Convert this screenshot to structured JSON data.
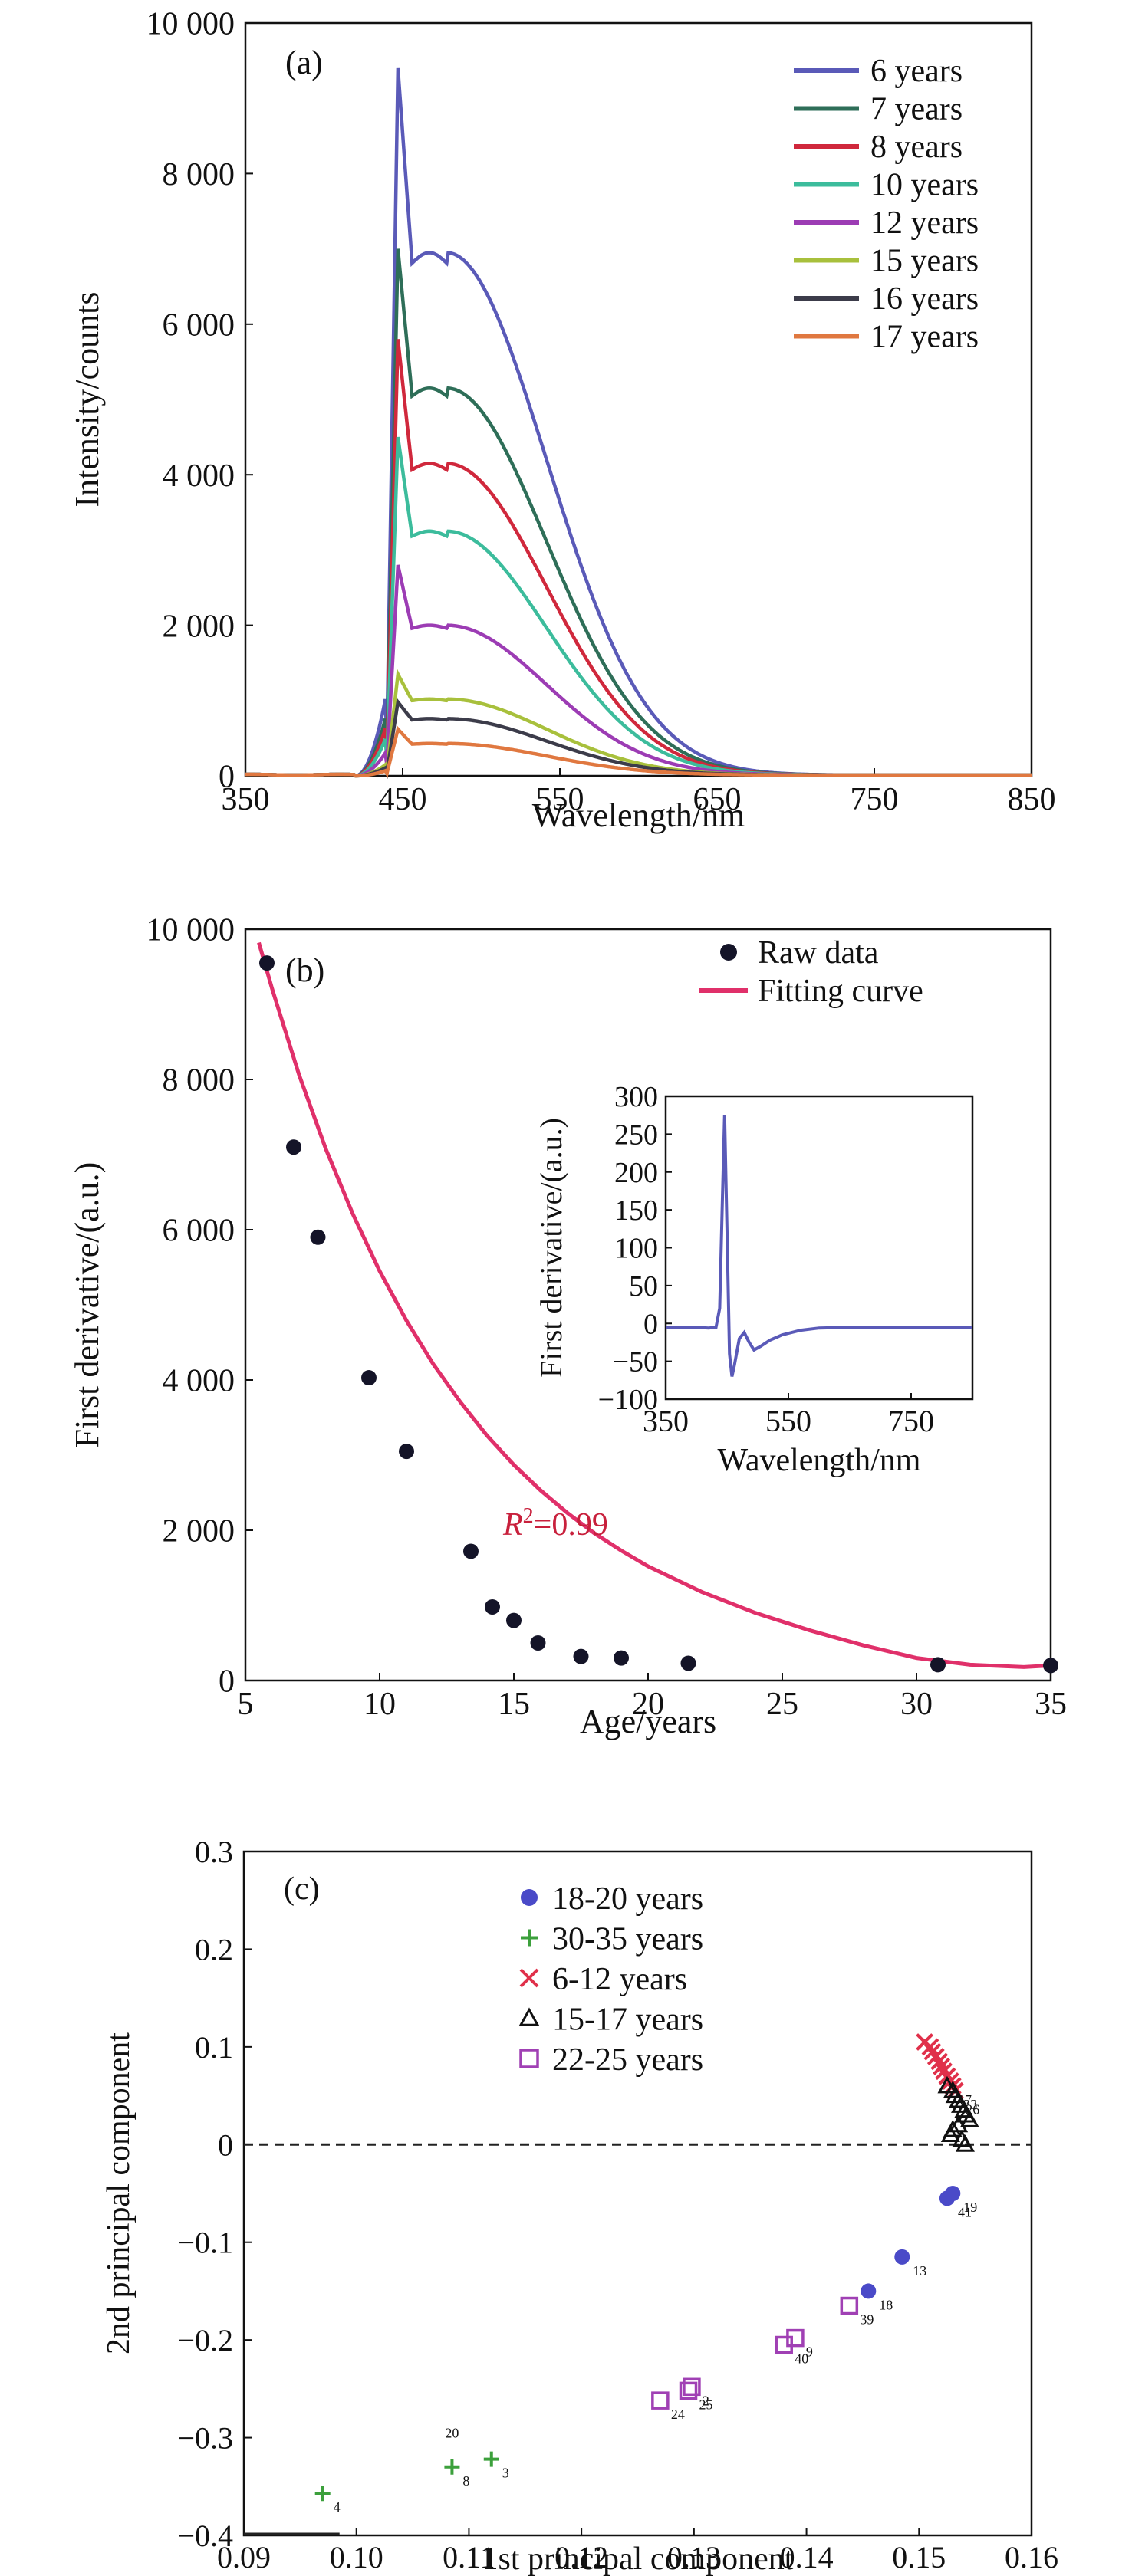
{
  "chart_data": [
    {
      "panel": "(a)",
      "type": "line",
      "xlabel": "Wavelength/nm",
      "ylabel": "Intensity/counts",
      "xlim": [
        350,
        850
      ],
      "ylim": [
        0,
        10000
      ],
      "xticks": [
        350,
        450,
        550,
        650,
        750,
        850
      ],
      "xtick_labels": [
        "350",
        "450",
        "550",
        "650",
        "750",
        "850"
      ],
      "yticks": [
        0,
        2000,
        4000,
        6000,
        8000,
        10000
      ],
      "ytick_labels": [
        "0",
        "2 000",
        "4 000",
        "6 000",
        "8 000",
        "10 000"
      ],
      "legend_position": "top-right",
      "peak_wavelength": 447,
      "series": [
        {
          "name": "6 years",
          "color": "#5a5ab8",
          "peak": 9400,
          "shoulder": 6950
        },
        {
          "name": "7 years",
          "color": "#2e6e58",
          "peak": 7000,
          "shoulder": 5150
        },
        {
          "name": "8 years",
          "color": "#d0283c",
          "peak": 5800,
          "shoulder": 4150
        },
        {
          "name": "10 years",
          "color": "#3cbc9c",
          "peak": 4500,
          "shoulder": 3250
        },
        {
          "name": "12 years",
          "color": "#9c3cb4",
          "peak": 2800,
          "shoulder": 2000
        },
        {
          "name": "15 years",
          "color": "#a8c03c",
          "peak": 1350,
          "shoulder": 1020
        },
        {
          "name": "16 years",
          "color": "#3c3c4a",
          "peak": 980,
          "shoulder": 760
        },
        {
          "name": "17 years",
          "color": "#e07840",
          "peak": 620,
          "shoulder": 430
        }
      ]
    },
    {
      "panel": "(b)",
      "type": "scatter",
      "xlabel": "Age/years",
      "ylabel": "First derivative/(a.u.)",
      "xlim": [
        5,
        35
      ],
      "ylim": [
        0,
        10000
      ],
      "xticks": [
        5,
        10,
        15,
        20,
        25,
        30,
        35
      ],
      "xtick_labels": [
        "5",
        "10",
        "15",
        "20",
        "25",
        "30",
        "35"
      ],
      "yticks": [
        0,
        2000,
        4000,
        6000,
        8000,
        10000
      ],
      "ytick_labels": [
        "0",
        "2 000",
        "4 000",
        "6 000",
        "8 000",
        "10 000"
      ],
      "legend_position": "top-right",
      "annotation": "R²=0.99",
      "series": [
        {
          "name": "Raw data",
          "color": "#141428",
          "x": [
            5.8,
            6.8,
            7.7,
            9.6,
            11.0,
            13.4,
            14.2,
            15.0,
            15.9,
            17.5,
            19.0,
            21.5,
            30.8,
            35.0
          ],
          "y": [
            9550,
            7100,
            5900,
            4030,
            3050,
            1720,
            980,
            800,
            500,
            320,
            300,
            230,
            210,
            200
          ]
        },
        {
          "name": "Fitting curve",
          "color": "#e0306a",
          "x": [
            5.5,
            6,
            7,
            8,
            9,
            10,
            11,
            12,
            13,
            14,
            15,
            16,
            17,
            18,
            19,
            20,
            22,
            24,
            26,
            28,
            30,
            32,
            34,
            35
          ],
          "y": [
            9820,
            9200,
            8060,
            7070,
            6210,
            5450,
            4790,
            4210,
            3710,
            3260,
            2870,
            2530,
            2230,
            1960,
            1730,
            1520,
            1180,
            900,
            670,
            470,
            300,
            210,
            180,
            200
          ]
        }
      ],
      "inset": {
        "type": "line",
        "xlabel": "Wavelength/nm",
        "ylabel": "First derivative/(a.u.)",
        "xlim": [
          350,
          850
        ],
        "ylim": [
          -100,
          300
        ],
        "xticks": [
          350,
          550,
          750
        ],
        "xtick_labels": [
          "350",
          "550",
          "750"
        ],
        "yticks": [
          -100,
          -50,
          0,
          50,
          100,
          150,
          200,
          250,
          300
        ],
        "ytick_labels": [
          "−100",
          "−50",
          "0",
          "50",
          "100",
          "150",
          "200",
          "250",
          "300"
        ],
        "color": "#5a5ab8",
        "x": [
          350,
          400,
          420,
          432,
          438,
          442,
          446,
          450,
          454,
          458,
          462,
          470,
          478,
          486,
          494,
          505,
          520,
          540,
          570,
          600,
          650,
          700,
          850
        ],
        "y": [
          -5,
          -5,
          -6,
          -5,
          20,
          150,
          275,
          120,
          -40,
          -70,
          -55,
          -20,
          -12,
          -25,
          -35,
          -30,
          -22,
          -15,
          -9,
          -6,
          -5,
          -5,
          -5
        ]
      }
    },
    {
      "panel": "(c)",
      "type": "scatter",
      "xlabel": "1st principal component",
      "ylabel": "2nd principal component",
      "xlim": [
        0.09,
        0.16
      ],
      "ylim": [
        -0.4,
        0.3
      ],
      "xticks": [
        0.09,
        0.1,
        0.11,
        0.12,
        0.13,
        0.14,
        0.15,
        0.16
      ],
      "xtick_labels": [
        "0.09",
        "0.10",
        "0.11",
        "0.12",
        "0.13",
        "0.14",
        "0.15",
        "0.16"
      ],
      "yticks": [
        -0.4,
        -0.3,
        -0.2,
        -0.1,
        0,
        0.1,
        0.2,
        0.3
      ],
      "ytick_labels": [
        "−0.4",
        "−0.3",
        "−0.2",
        "−0.1",
        "0",
        "0.1",
        "0.2",
        "0.3"
      ],
      "legend_position": "top-left",
      "series": [
        {
          "name": "18-20 years",
          "color": "#4a4ac8",
          "marker": "circle",
          "x": [
            0.1525,
            0.153,
            0.1485,
            0.1455
          ],
          "y": [
            -0.055,
            -0.05,
            -0.115,
            -0.15
          ],
          "labels": [
            "41",
            "19",
            "13",
            "18"
          ]
        },
        {
          "name": "30-35 years",
          "color": "#3ca03c",
          "marker": "plus",
          "x": [
            0.097,
            0.1085,
            0.112
          ],
          "y": [
            -0.357,
            -0.33,
            -0.322
          ],
          "labels": [
            "4",
            "8",
            "3"
          ]
        },
        {
          "name": "6-12 years",
          "color": "#e0304a",
          "marker": "x",
          "x": [
            0.1505,
            0.151,
            0.1512,
            0.1515,
            0.1518,
            0.152,
            0.1522,
            0.1525,
            0.1528,
            0.153,
            0.1532
          ],
          "y": [
            0.105,
            0.1,
            0.095,
            0.09,
            0.085,
            0.08,
            0.075,
            0.07,
            0.065,
            0.06,
            0.055
          ],
          "labels": []
        },
        {
          "name": "15-17 years",
          "color": "#111111",
          "marker": "triangle",
          "x": [
            0.1525,
            0.153,
            0.1532,
            0.1535,
            0.1537,
            0.154,
            0.1542,
            0.1545,
            0.1535,
            0.153,
            0.1528,
            0.1538,
            0.1541
          ],
          "y": [
            0.06,
            0.055,
            0.05,
            0.045,
            0.04,
            0.035,
            0.03,
            0.025,
            0.02,
            0.015,
            0.01,
            0.005,
            0.0
          ],
          "labels": [
            "17",
            "23",
            "26"
          ]
        },
        {
          "name": "22-25 years",
          "color": "#a040b4",
          "marker": "square",
          "x": [
            0.127,
            0.1295,
            0.1298,
            0.138,
            0.139,
            0.1438
          ],
          "y": [
            -0.262,
            -0.252,
            -0.248,
            -0.205,
            -0.198,
            -0.165
          ],
          "labels": [
            "24",
            "25",
            "2",
            "40",
            "9",
            "39"
          ]
        }
      ]
    }
  ],
  "panels": {
    "a": {
      "label": "(a)"
    },
    "b": {
      "label": "(b)",
      "r2_prefix": "R",
      "r2_sup": "2",
      "r2_value": "=0.99"
    },
    "c": {
      "label": "(c)",
      "label_20": "20"
    }
  }
}
